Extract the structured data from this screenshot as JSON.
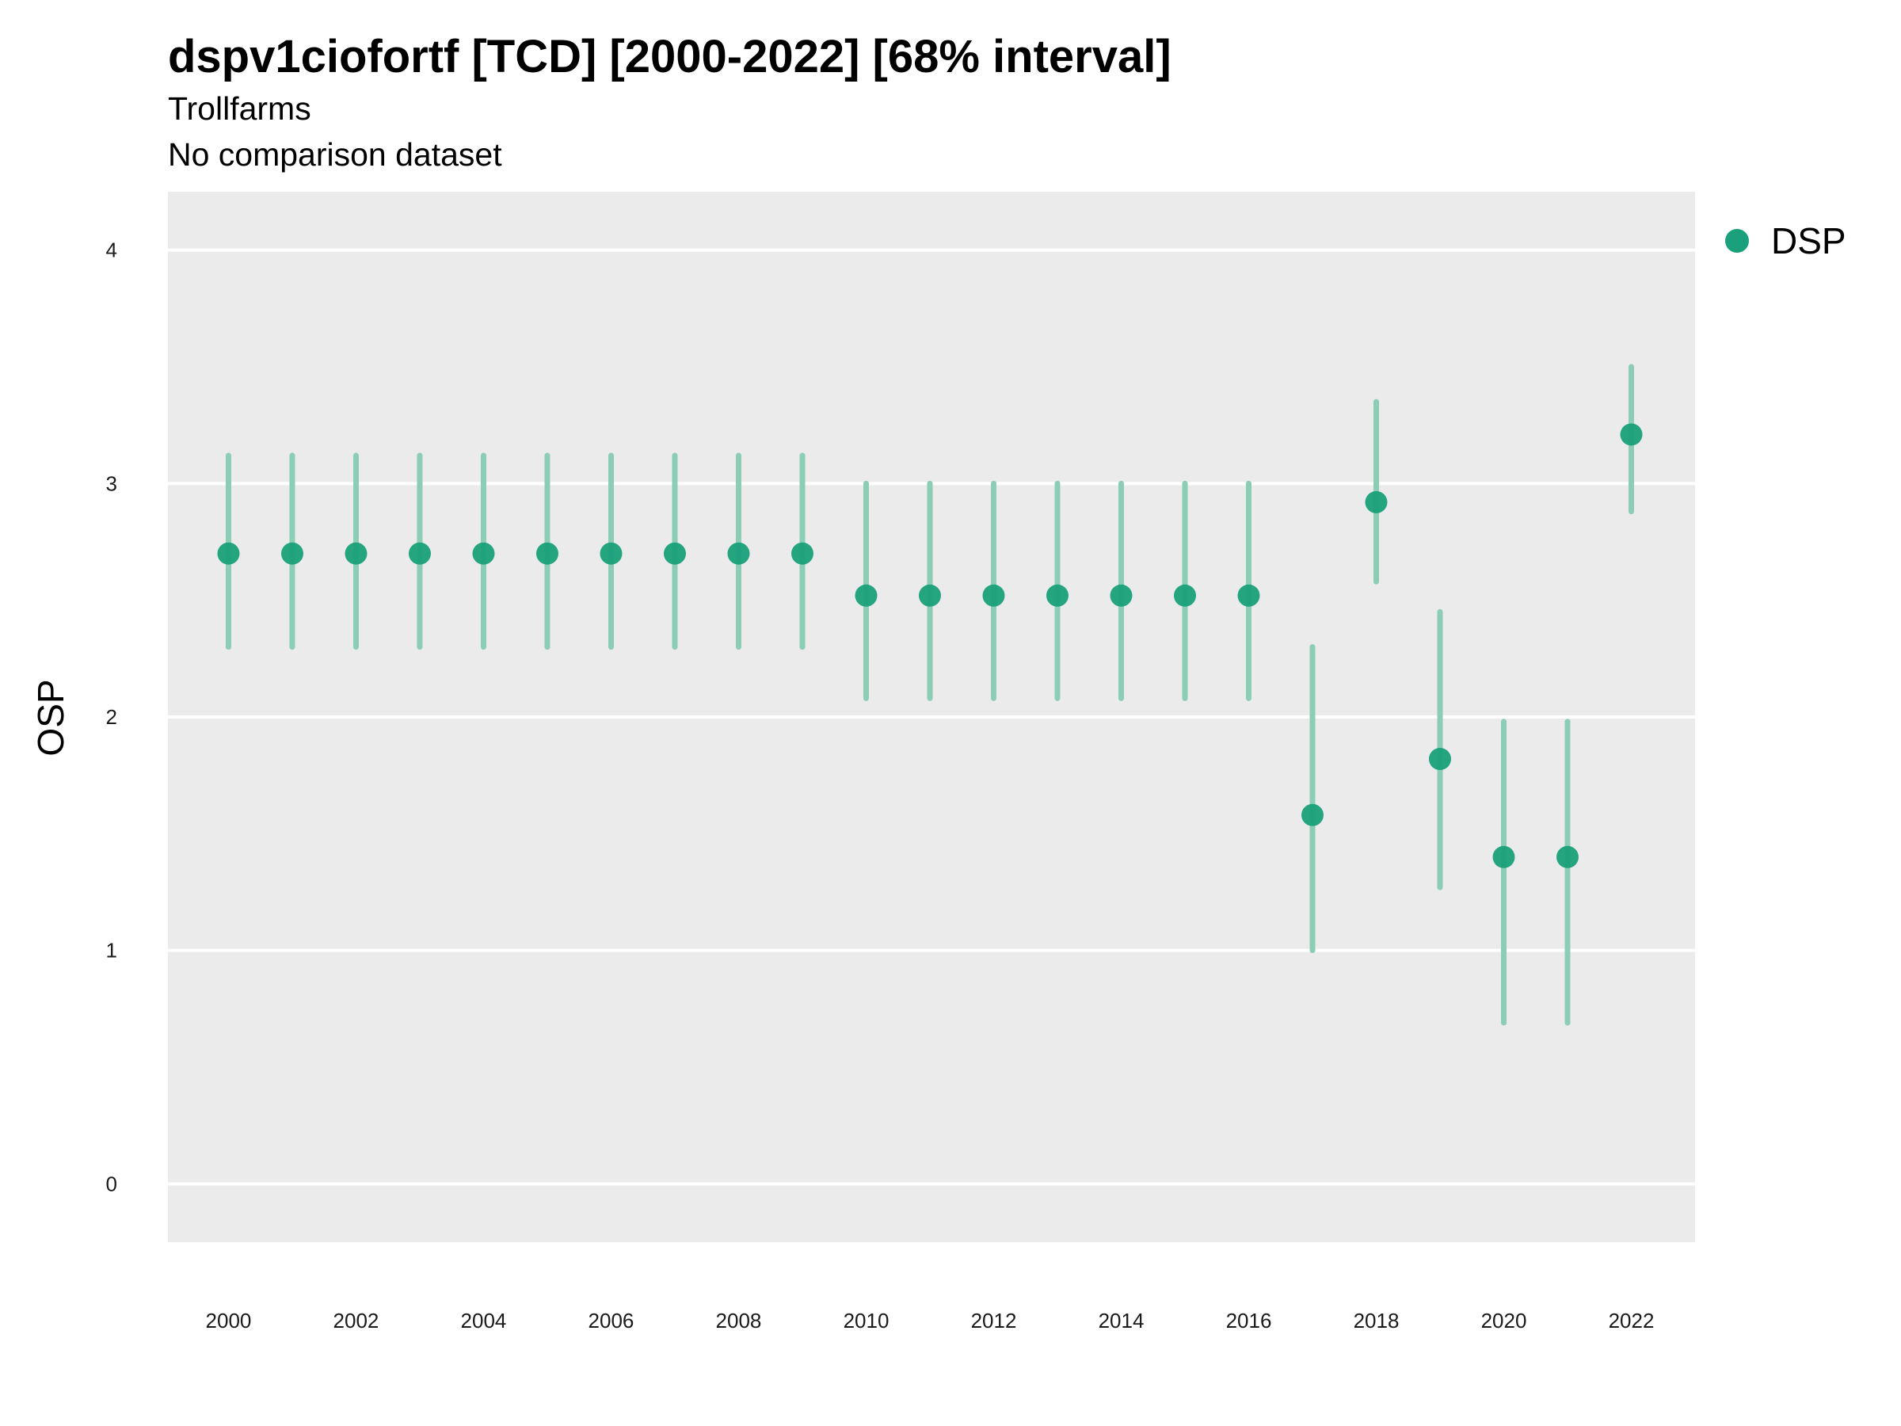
{
  "chart_data": {
    "type": "scatter",
    "title": "dspv1ciofortf [TCD] [2000-2022] [68% interval]",
    "subtitle_lines": [
      "Trollfarms",
      "No comparison dataset"
    ],
    "xlabel": "",
    "ylabel": "OSP",
    "ylim": [
      -0.25,
      4.25
    ],
    "y_ticks": [
      0,
      1,
      2,
      3,
      4
    ],
    "xlim": [
      1999.05,
      2023.0
    ],
    "x_ticks": [
      2000,
      2002,
      2004,
      2006,
      2008,
      2010,
      2012,
      2014,
      2016,
      2018,
      2020,
      2022
    ],
    "grid": true,
    "legend_position": "right",
    "series": [
      {
        "name": "DSP",
        "color": "#1aa07a",
        "points": [
          {
            "x": 2000,
            "y": 2.7,
            "lo": 2.3,
            "hi": 3.12
          },
          {
            "x": 2001,
            "y": 2.7,
            "lo": 2.3,
            "hi": 3.12
          },
          {
            "x": 2002,
            "y": 2.7,
            "lo": 2.3,
            "hi": 3.12
          },
          {
            "x": 2003,
            "y": 2.7,
            "lo": 2.3,
            "hi": 3.12
          },
          {
            "x": 2004,
            "y": 2.7,
            "lo": 2.3,
            "hi": 3.12
          },
          {
            "x": 2005,
            "y": 2.7,
            "lo": 2.3,
            "hi": 3.12
          },
          {
            "x": 2006,
            "y": 2.7,
            "lo": 2.3,
            "hi": 3.12
          },
          {
            "x": 2007,
            "y": 2.7,
            "lo": 2.3,
            "hi": 3.12
          },
          {
            "x": 2008,
            "y": 2.7,
            "lo": 2.3,
            "hi": 3.12
          },
          {
            "x": 2009,
            "y": 2.7,
            "lo": 2.3,
            "hi": 3.12
          },
          {
            "x": 2010,
            "y": 2.52,
            "lo": 2.08,
            "hi": 3.0
          },
          {
            "x": 2011,
            "y": 2.52,
            "lo": 2.08,
            "hi": 3.0
          },
          {
            "x": 2012,
            "y": 2.52,
            "lo": 2.08,
            "hi": 3.0
          },
          {
            "x": 2013,
            "y": 2.52,
            "lo": 2.08,
            "hi": 3.0
          },
          {
            "x": 2014,
            "y": 2.52,
            "lo": 2.08,
            "hi": 3.0
          },
          {
            "x": 2015,
            "y": 2.52,
            "lo": 2.08,
            "hi": 3.0
          },
          {
            "x": 2016,
            "y": 2.52,
            "lo": 2.08,
            "hi": 3.0
          },
          {
            "x": 2017,
            "y": 1.58,
            "lo": 1.0,
            "hi": 2.3
          },
          {
            "x": 2018,
            "y": 2.92,
            "lo": 2.58,
            "hi": 3.35
          },
          {
            "x": 2019,
            "y": 1.82,
            "lo": 1.27,
            "hi": 2.45
          },
          {
            "x": 2020,
            "y": 1.4,
            "lo": 0.69,
            "hi": 1.98
          },
          {
            "x": 2021,
            "y": 1.4,
            "lo": 0.69,
            "hi": 1.98
          },
          {
            "x": 2022,
            "y": 3.21,
            "lo": 2.88,
            "hi": 3.5
          }
        ]
      }
    ],
    "colors": {
      "panel": "#ebebeb",
      "grid": "#ffffff",
      "point": "#1aa07a",
      "interval": "#8ccdb5"
    }
  }
}
